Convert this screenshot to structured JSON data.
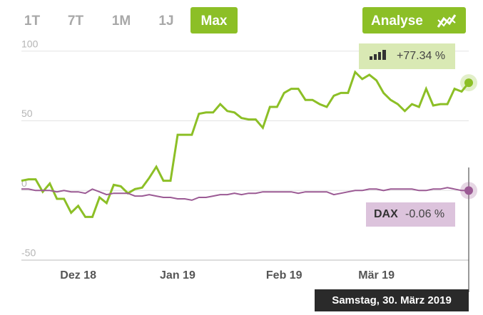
{
  "ui": {
    "range_buttons": [
      "1T",
      "7T",
      "1M",
      "1J",
      "Max"
    ],
    "selected_range": 4,
    "analyse_button": "Analyse",
    "crosshair_date": "Samstag, 30. März 2019"
  },
  "chart_data": {
    "type": "line",
    "categories": [
      null,
      null,
      null,
      null,
      null,
      null,
      null,
      null,
      "Dez 18",
      null,
      null,
      null,
      null,
      null,
      null,
      null,
      null,
      null,
      null,
      null,
      null,
      null,
      "Jan 19",
      null,
      null,
      null,
      null,
      null,
      null,
      null,
      null,
      null,
      null,
      null,
      null,
      null,
      null,
      "Feb 19",
      null,
      null,
      null,
      null,
      null,
      null,
      null,
      null,
      null,
      null,
      null,
      null,
      "Mär 19",
      null,
      null,
      null,
      null,
      null,
      null,
      null,
      null,
      null,
      null,
      null,
      null,
      null
    ],
    "series": [
      {
        "color": "#8cbf26",
        "label_color": "#d9e9b4",
        "last_value_label": "+77.34 %",
        "values": [
          7,
          8,
          8,
          -1,
          5,
          -6,
          -6,
          -16,
          -11,
          -19,
          -19,
          -5,
          -9,
          4,
          3,
          -2,
          1,
          2,
          9,
          17,
          7,
          7,
          40,
          40,
          40,
          55,
          56,
          56,
          62,
          57,
          56,
          52,
          51,
          51,
          45,
          60,
          60,
          70,
          73,
          73,
          65,
          65,
          62,
          60,
          68,
          70,
          70,
          85,
          80,
          83,
          79,
          70,
          65,
          62,
          57,
          62,
          60,
          73,
          61,
          62,
          62,
          73,
          71,
          77.34
        ]
      },
      {
        "name": "DAX",
        "color": "#9b5a94",
        "label_color": "#dcc3dc",
        "last_value_label": "-0.06 %",
        "values": [
          1,
          1,
          0,
          0,
          0,
          -1,
          0,
          -1,
          -1,
          -2,
          1,
          -1,
          -3,
          -2,
          -2,
          -2,
          -4,
          -4,
          -3,
          -4,
          -5,
          -5,
          -6,
          -6,
          -7,
          -5,
          -5,
          -4,
          -3,
          -3,
          -2,
          -3,
          -2,
          -2,
          -1,
          -1,
          -1,
          -1,
          -1,
          -2,
          -1,
          -1,
          -1,
          -1,
          -3,
          -2,
          -1,
          0,
          0,
          1,
          1,
          0,
          1,
          1,
          1,
          1,
          0,
          0,
          1,
          1,
          2,
          1,
          0,
          -0.06
        ]
      }
    ],
    "ylim": [
      -50,
      105
    ],
    "yticks": [
      -50,
      0,
      50,
      100
    ],
    "grid": true
  }
}
